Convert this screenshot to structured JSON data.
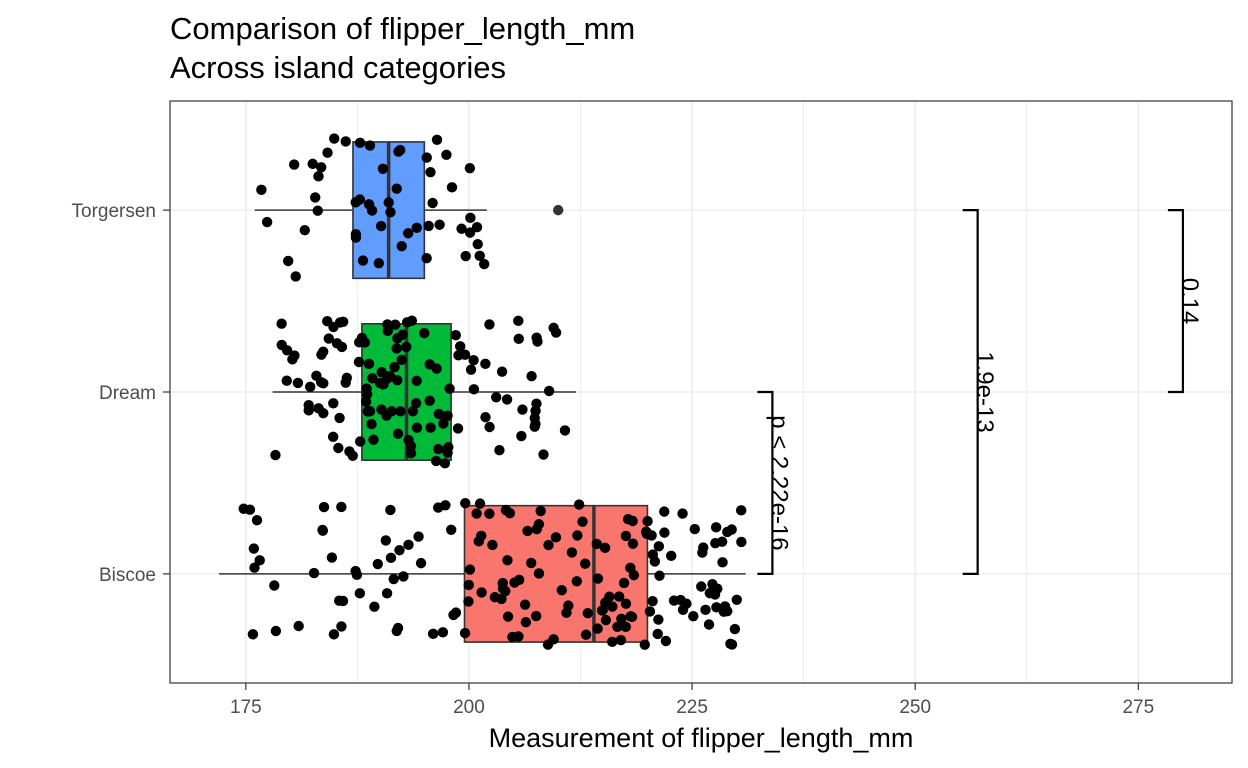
{
  "chart_data": {
    "type": "boxplot",
    "title": "Comparison of flipper_length_mm",
    "subtitle": "Across island categories",
    "xlabel": "Measurement of flipper_length_mm",
    "ylabel": "",
    "xlim": [
      166.5,
      285.5
    ],
    "x_ticks": [
      175,
      200,
      225,
      250,
      275
    ],
    "categories": [
      "Biscoe",
      "Dream",
      "Torgersen"
    ],
    "grid": true,
    "boxes": [
      {
        "category": "Biscoe",
        "color": "#F8766D",
        "min": 172,
        "q1": 199.5,
        "median": 214,
        "q3": 220,
        "max": 231
      },
      {
        "category": "Dream",
        "color": "#00BA38",
        "min": 178,
        "q1": 188,
        "median": 193,
        "q3": 198,
        "max": 212
      },
      {
        "category": "Torgersen",
        "color": "#619CFF",
        "min": 176,
        "q1": 187,
        "median": 191,
        "q3": 195,
        "max": 202
      }
    ],
    "outliers": [
      {
        "category": "Torgersen",
        "value": 210
      }
    ],
    "comparisons": [
      {
        "group1": "Biscoe",
        "group2": "Dream",
        "label": "p < 2.22e-16",
        "x": 234
      },
      {
        "group1": "Biscoe",
        "group2": "Torgersen",
        "label": "1.9e-13",
        "x": 257
      },
      {
        "group1": "Dream",
        "group2": "Torgersen",
        "label": "0.14",
        "x": 280
      }
    ]
  }
}
